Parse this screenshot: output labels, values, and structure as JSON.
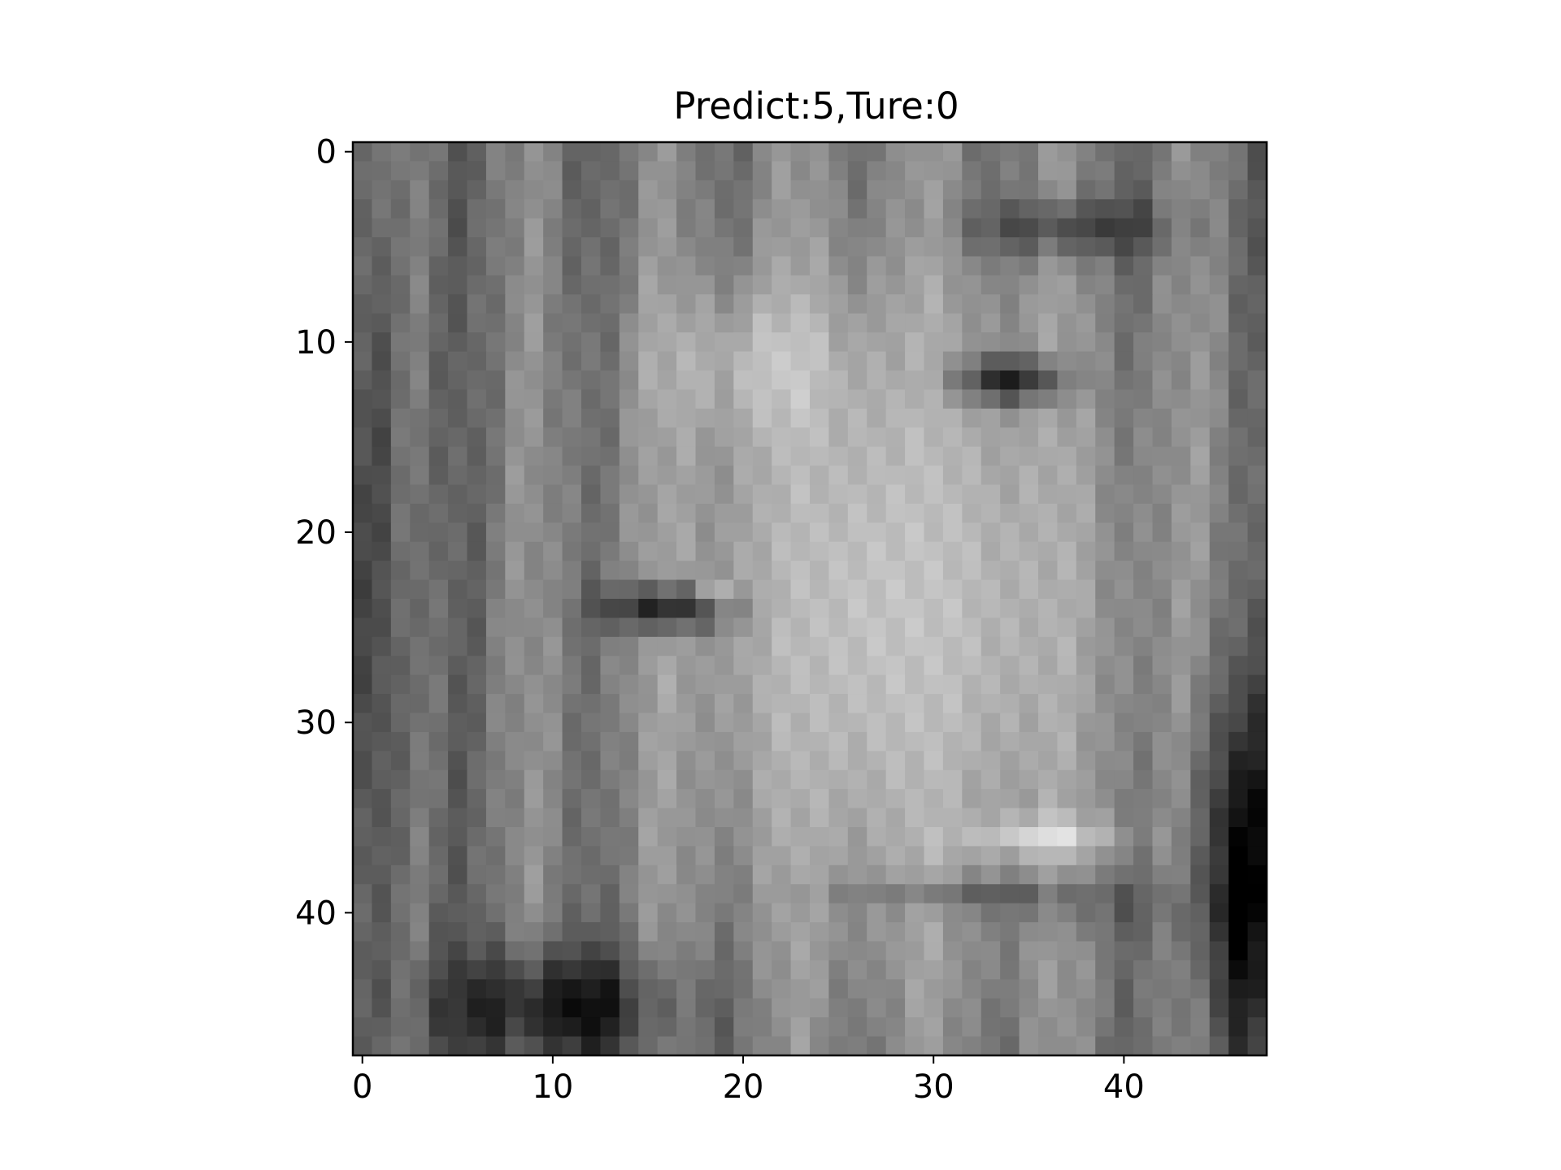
{
  "chart_data": {
    "type": "heatmap",
    "title": "Predict:5,Ture:0",
    "xlabel": "",
    "ylabel": "",
    "colormap": "gray",
    "grid": false,
    "image_size": [
      48,
      48
    ],
    "xlim": [
      -0.5,
      47.5
    ],
    "ylim": [
      47.5,
      -0.5
    ],
    "xticks": [
      0,
      10,
      20,
      30,
      40
    ],
    "yticks": [
      0,
      10,
      20,
      30,
      40
    ],
    "xtick_labels": [
      "0",
      "10",
      "20",
      "30",
      "40"
    ],
    "ytick_labels": [
      "0",
      "10",
      "20",
      "30",
      "40"
    ]
  }
}
